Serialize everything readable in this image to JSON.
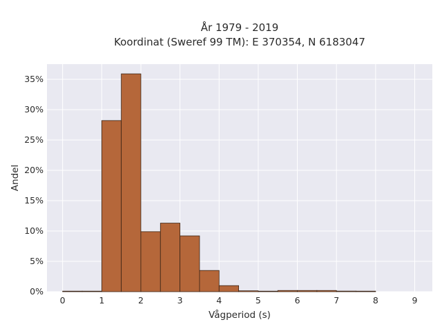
{
  "chart_data": {
    "type": "bar",
    "title_line1": "År 1979 - 2019",
    "title_line2": "Koordinat (Sweref 99 TM): E 370354, N 6183047",
    "xlabel": "Vågperiod (s)",
    "ylabel": "Andel",
    "xlim": [
      -0.4,
      9.45
    ],
    "ylim": [
      0,
      0.375
    ],
    "x_ticks": [
      0,
      1,
      2,
      3,
      4,
      5,
      6,
      7,
      8,
      9
    ],
    "y_ticks": [
      0,
      0.05,
      0.1,
      0.15,
      0.2,
      0.25,
      0.3,
      0.35
    ],
    "y_tick_labels": [
      "0%",
      "5%",
      "10%",
      "15%",
      "20%",
      "25%",
      "30%",
      "35%"
    ],
    "bin_width": 0.5,
    "bins": [
      {
        "start": 0.0,
        "value": 0.0005
      },
      {
        "start": 0.5,
        "value": 0.0
      },
      {
        "start": 1.0,
        "value": 0.282
      },
      {
        "start": 1.5,
        "value": 0.359
      },
      {
        "start": 2.0,
        "value": 0.099
      },
      {
        "start": 2.5,
        "value": 0.113
      },
      {
        "start": 3.0,
        "value": 0.092
      },
      {
        "start": 3.5,
        "value": 0.035
      },
      {
        "start": 4.0,
        "value": 0.01
      },
      {
        "start": 4.5,
        "value": 0.0015
      },
      {
        "start": 5.0,
        "value": 0.0
      },
      {
        "start": 5.5,
        "value": 0.002
      },
      {
        "start": 6.0,
        "value": 0.002
      },
      {
        "start": 6.5,
        "value": 0.002
      },
      {
        "start": 7.0,
        "value": 0.001
      },
      {
        "start": 7.5,
        "value": 0.0005
      }
    ],
    "grid": true,
    "colors": {
      "bar_fill": "#b5673a",
      "bar_stroke": "#3a2416",
      "plot_bg": "#e9e9f1",
      "grid": "#ffffff"
    }
  }
}
